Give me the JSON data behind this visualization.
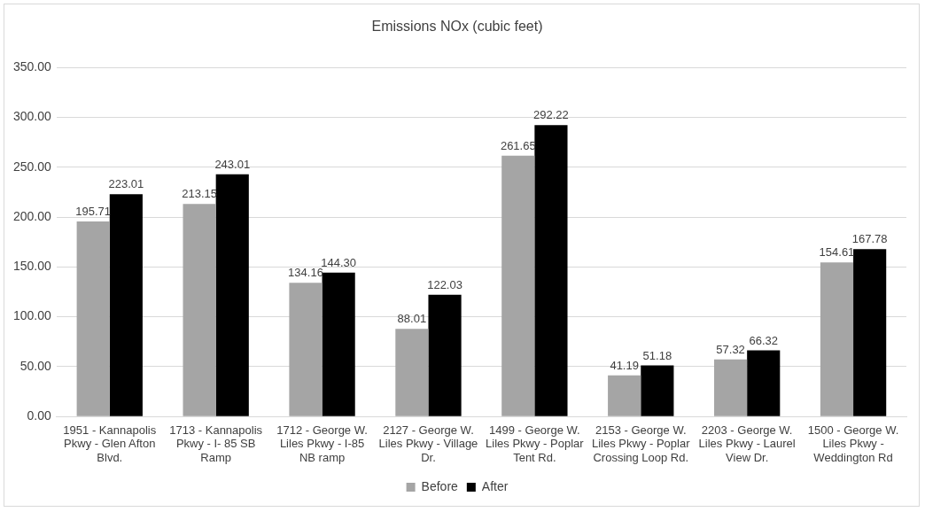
{
  "chart_data": {
    "type": "bar",
    "title": "Emissions NOx (cubic feet)",
    "categories": [
      "1951 - Kannapolis Pkwy - Glen Afton Blvd.",
      "1713 - Kannapolis Pkwy - I- 85 SB Ramp",
      "1712 - George W. Liles Pkwy - I-85 NB ramp",
      "2127 - George W. Liles Pkwy - Village Dr.",
      "1499 - George W. Liles Pkwy - Poplar Tent Rd.",
      "2153 - George W. Liles Pkwy - Poplar Crossing Loop Rd.",
      "2203 - George W. Liles Pkwy - Laurel View Dr.",
      "1500 - George W. Liles Pkwy - Weddington Rd"
    ],
    "series": [
      {
        "name": "Before",
        "color": "#a5a5a5",
        "values": [
          195.71,
          213.15,
          134.16,
          88.01,
          261.65,
          41.19,
          57.32,
          154.61
        ],
        "value_labels": [
          "195.71",
          "213.15",
          "134.16",
          "88.01",
          "261.65",
          "41.19",
          "57.32",
          "154.61"
        ]
      },
      {
        "name": "After",
        "color": "#000000",
        "values": [
          223.01,
          243.01,
          144.3,
          122.03,
          292.22,
          51.18,
          66.32,
          167.78
        ],
        "value_labels": [
          "223.01",
          "243.01",
          "144.30",
          "122.03",
          "292.22",
          "51.18",
          "66.32",
          "167.78"
        ]
      }
    ],
    "ylim": [
      0,
      350
    ],
    "yticks": [
      {
        "value": 0,
        "label": "0.00"
      },
      {
        "value": 50,
        "label": "50.00"
      },
      {
        "value": 100,
        "label": "100.00"
      },
      {
        "value": 150,
        "label": "150.00"
      },
      {
        "value": 200,
        "label": "200.00"
      },
      {
        "value": 250,
        "label": "250.00"
      },
      {
        "value": 300,
        "label": "300.00"
      },
      {
        "value": 350,
        "label": "350.00"
      }
    ],
    "grid": "y",
    "legend": "bottom"
  }
}
